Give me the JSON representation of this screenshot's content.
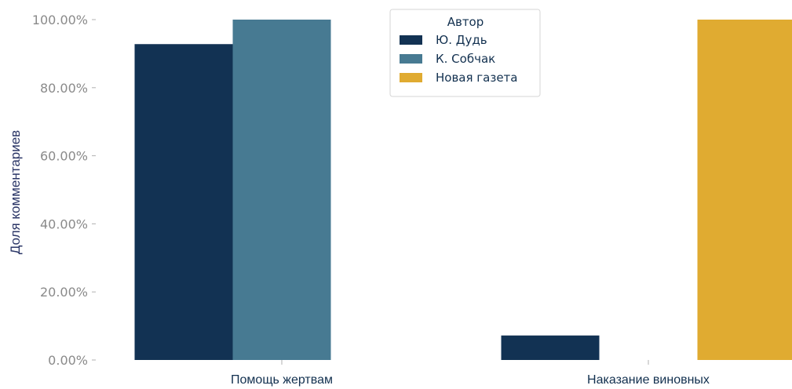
{
  "chart_data": {
    "type": "bar",
    "categories": [
      "Помощь жертвам",
      "Наказание виновных"
    ],
    "series": [
      {
        "name": "Ю. Дудь",
        "color": "#123253",
        "values": [
          92.8,
          7.2
        ]
      },
      {
        "name": "К. Собчак",
        "color": "#477a92",
        "values": [
          100.0,
          0.0
        ]
      },
      {
        "name": "Новая газета",
        "color": "#e0ab31",
        "values": [
          0.0,
          100.0
        ]
      }
    ],
    "ylabel": "Доля комментариев",
    "ylim": [
      0,
      100
    ],
    "yticks": [
      "0.00%",
      "20.00%",
      "40.00%",
      "60.00%",
      "80.00%",
      "100.00%"
    ],
    "legend": {
      "title": "Автор",
      "position": "top-center"
    },
    "grid": false
  }
}
